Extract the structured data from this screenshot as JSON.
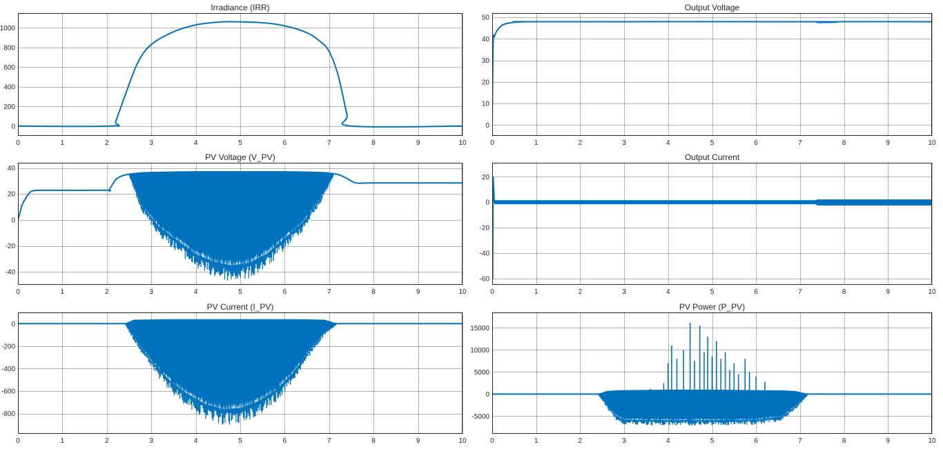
{
  "figure": {
    "colors": {
      "line": "#0072bd",
      "grid": "#262626",
      "background": "#ffffff"
    }
  },
  "chart_data": [
    {
      "id": "irr",
      "type": "line",
      "title": "Irradiance (IRR)",
      "xlabel": "",
      "ylabel": "",
      "xlim": [
        0,
        10
      ],
      "ylim": [
        -100,
        1150
      ],
      "xticks": [
        0,
        1,
        2,
        3,
        4,
        5,
        6,
        7,
        8,
        9,
        10
      ],
      "yticks": [
        0,
        200,
        400,
        600,
        800,
        1000
      ],
      "grid": true,
      "series": [
        {
          "x": [
            0,
            2.1,
            2.2,
            2.4,
            2.7,
            3.0,
            3.5,
            4.0,
            4.5,
            4.8,
            5.5,
            6.0,
            6.5,
            6.8,
            7.0,
            7.2,
            7.4,
            7.5,
            10
          ],
          "y": [
            0,
            0,
            50,
            300,
            650,
            830,
            960,
            1030,
            1058,
            1062,
            1052,
            1020,
            950,
            860,
            760,
            520,
            120,
            0,
            0
          ]
        }
      ]
    },
    {
      "id": "vout",
      "type": "line",
      "title": "Output Voltage",
      "xlabel": "",
      "ylabel": "",
      "xlim": [
        0,
        10
      ],
      "ylim": [
        -5,
        52
      ],
      "xticks": [
        0,
        1,
        2,
        3,
        4,
        5,
        6,
        7,
        8,
        9,
        10
      ],
      "yticks": [
        0,
        10,
        20,
        30,
        40,
        50
      ],
      "grid": true,
      "series": [
        {
          "x": [
            0,
            0.02,
            0.05,
            0.1,
            0.2,
            0.3,
            0.5,
            0.8,
            1.0,
            7.35,
            7.45,
            7.6,
            10
          ],
          "y": [
            0,
            38,
            41,
            43.5,
            46,
            47,
            47.7,
            48,
            48,
            48,
            47.6,
            48,
            48
          ]
        }
      ]
    },
    {
      "id": "vpv",
      "type": "line",
      "title": "PV Voltage (V_PV)",
      "xlabel": "",
      "ylabel": "",
      "xlim": [
        0,
        10
      ],
      "ylim": [
        -50,
        44
      ],
      "xticks": [
        0,
        1,
        2,
        3,
        4,
        5,
        6,
        7,
        8,
        9,
        10
      ],
      "yticks": [
        -40,
        -20,
        0,
        20,
        40
      ],
      "grid": true,
      "series": [
        {
          "x": [
            0,
            0.05,
            0.1,
            0.2,
            0.3,
            0.5,
            1.0,
            2.0,
            2.05,
            2.2,
            2.4,
            2.7,
            3.0,
            4.0,
            5.0,
            6.0,
            6.8,
            7.0,
            7.2,
            7.4,
            7.6,
            8.0,
            10
          ],
          "y": [
            0,
            6,
            12,
            18,
            22,
            22.8,
            22.8,
            22.8,
            23,
            31,
            34.5,
            36,
            36.5,
            37,
            37,
            37,
            36.5,
            36,
            35,
            32,
            28.5,
            28.5,
            28.5
          ]
        }
      ],
      "oscillation": {
        "x": [
          2.5,
          2.8,
          3.2,
          3.6,
          4.0,
          4.4,
          4.8,
          5.2,
          5.6,
          6.0,
          6.4,
          6.8,
          7.1
        ],
        "min": [
          34,
          10,
          -6,
          -16,
          -26,
          -32,
          -35,
          -33,
          -26,
          -14,
          -2,
          16,
          34
        ]
      }
    },
    {
      "id": "iout",
      "type": "line",
      "title": "Output Current",
      "xlabel": "",
      "ylabel": "",
      "xlim": [
        0,
        10
      ],
      "ylim": [
        -65,
        31
      ],
      "xticks": [
        0,
        1,
        2,
        3,
        4,
        5,
        6,
        7,
        8,
        9,
        10
      ],
      "yticks": [
        -60,
        -40,
        -20,
        0,
        20
      ],
      "grid": true,
      "series": [
        {
          "x": [
            0,
            0.01,
            0.02,
            0.05,
            0.1,
            10
          ],
          "y": [
            0,
            -60,
            20,
            0,
            0,
            0
          ]
        }
      ],
      "band": {
        "x": [
          0.05,
          7.35,
          7.4,
          10
        ],
        "min": [
          -1.6,
          -1.6,
          -2.6,
          -2.6
        ],
        "max": [
          1.6,
          1.6,
          2.2,
          2.2
        ]
      }
    },
    {
      "id": "ipv",
      "type": "line",
      "title": "PV Current (I_PV)",
      "xlabel": "",
      "ylabel": "",
      "xlim": [
        0,
        10
      ],
      "ylim": [
        -980,
        100
      ],
      "xticks": [
        0,
        1,
        2,
        3,
        4,
        5,
        6,
        7,
        8,
        9,
        10
      ],
      "yticks": [
        -800,
        -600,
        -400,
        -200,
        0
      ],
      "grid": true,
      "series": [
        {
          "x": [
            0,
            10
          ],
          "y": [
            0,
            0
          ]
        }
      ],
      "oscillation": {
        "x": [
          2.4,
          2.6,
          3.0,
          3.4,
          3.8,
          4.2,
          4.6,
          5.0,
          5.4,
          5.8,
          6.2,
          6.6,
          6.9,
          7.2
        ],
        "max": [
          0,
          35,
          38,
          40,
          40,
          40,
          40,
          40,
          40,
          40,
          40,
          38,
          35,
          0
        ],
        "min": [
          0,
          -120,
          -330,
          -500,
          -620,
          -710,
          -760,
          -750,
          -690,
          -590,
          -430,
          -220,
          -80,
          0
        ]
      }
    },
    {
      "id": "ppv",
      "type": "line",
      "title": "PV Power (P_PV)",
      "xlabel": "",
      "ylabel": "",
      "xlim": [
        0,
        10
      ],
      "ylim": [
        -9000,
        18500
      ],
      "xticks": [
        0,
        1,
        2,
        3,
        4,
        5,
        6,
        7,
        8,
        9,
        10
      ],
      "yticks": [
        -5000,
        0,
        5000,
        10000,
        15000
      ],
      "grid": true,
      "series": [
        {
          "x": [
            0,
            10
          ],
          "y": [
            0,
            0
          ]
        }
      ],
      "oscillation": {
        "x": [
          2.4,
          2.6,
          2.8,
          3.0,
          4.0,
          5.0,
          6.0,
          6.6,
          6.9,
          7.2
        ],
        "max": [
          0,
          700,
          850,
          900,
          1000,
          1000,
          900,
          850,
          700,
          0
        ],
        "min": [
          0,
          -2500,
          -4800,
          -5800,
          -5900,
          -5900,
          -5800,
          -5000,
          -2800,
          0
        ]
      },
      "spikes": [
        {
          "x": 3.9,
          "y": 2500
        },
        {
          "x": 4.0,
          "y": 7000
        },
        {
          "x": 4.08,
          "y": 11000
        },
        {
          "x": 4.2,
          "y": 8000
        },
        {
          "x": 4.35,
          "y": 10000
        },
        {
          "x": 4.5,
          "y": 16200
        },
        {
          "x": 4.6,
          "y": 7500
        },
        {
          "x": 4.72,
          "y": 15500
        },
        {
          "x": 4.82,
          "y": 9500
        },
        {
          "x": 4.9,
          "y": 13000
        },
        {
          "x": 5.0,
          "y": 8500
        },
        {
          "x": 5.1,
          "y": 12000
        },
        {
          "x": 5.2,
          "y": 8000
        },
        {
          "x": 5.3,
          "y": 9500
        },
        {
          "x": 5.4,
          "y": 5500
        },
        {
          "x": 5.5,
          "y": 7000
        },
        {
          "x": 5.6,
          "y": 4500
        },
        {
          "x": 5.75,
          "y": 8000
        },
        {
          "x": 5.85,
          "y": 5000
        },
        {
          "x": 6.0,
          "y": 4000
        },
        {
          "x": 3.6,
          "y": 1200
        },
        {
          "x": 6.2,
          "y": 2800
        }
      ]
    }
  ]
}
